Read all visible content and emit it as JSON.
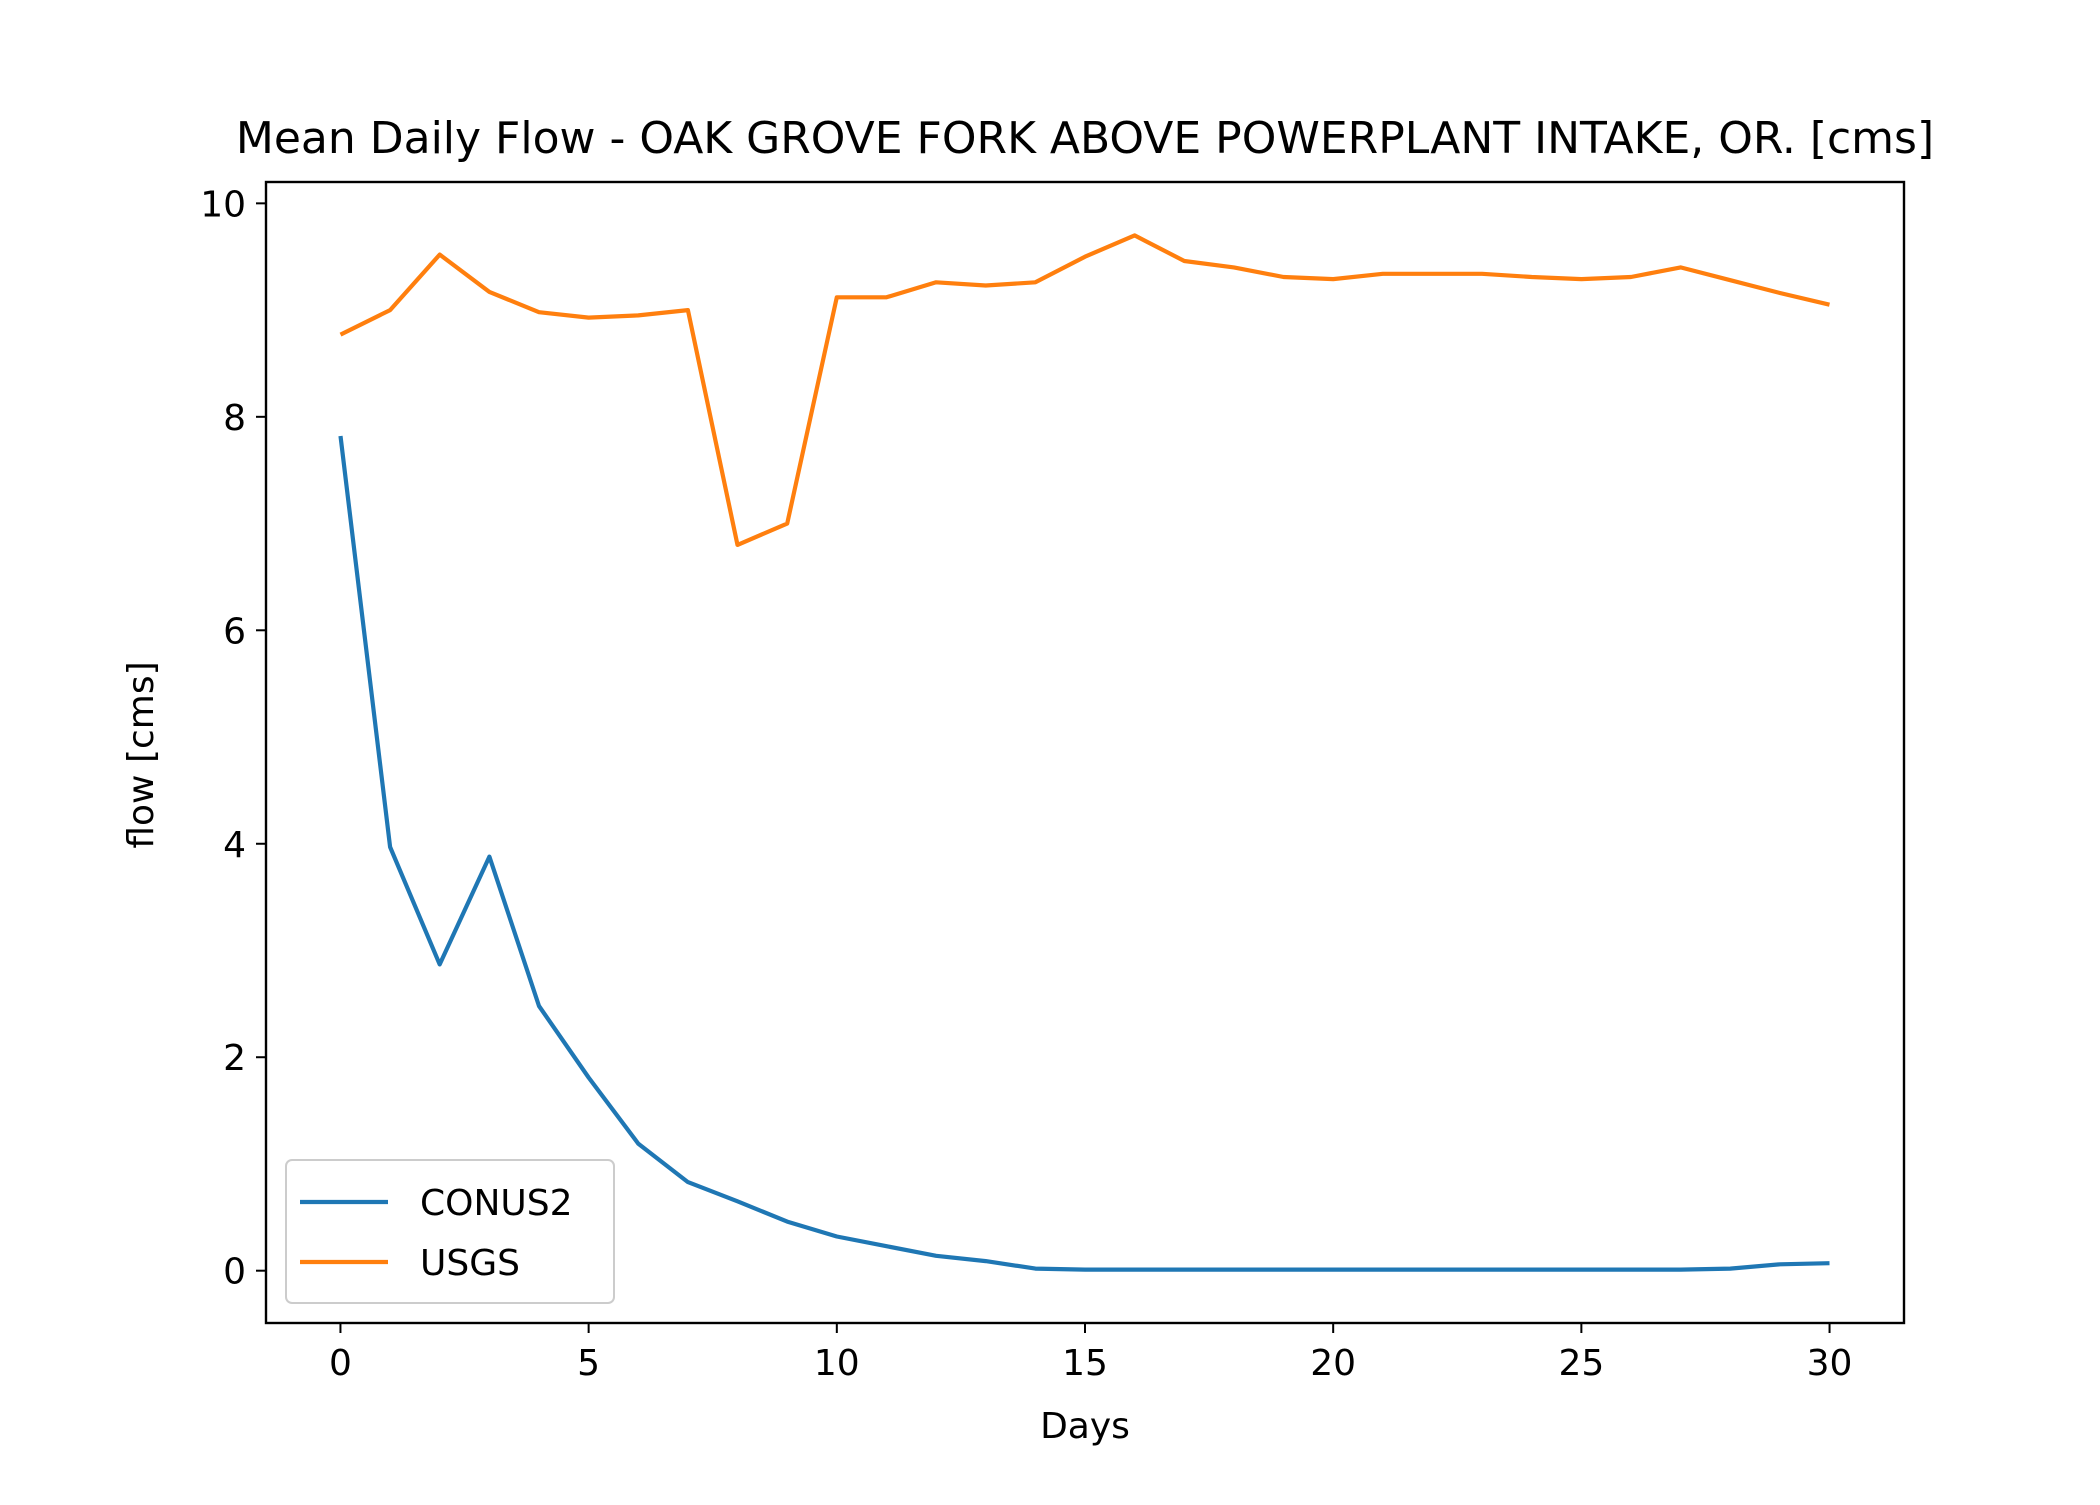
{
  "chart_data": {
    "type": "line",
    "title": "Mean Daily Flow - OAK GROVE FORK ABOVE POWERPLANT INTAKE, OR. [cms]",
    "xlabel": "Days",
    "ylabel": "flow [cms]",
    "xlim": [
      -1.5,
      31.5
    ],
    "ylim": [
      -0.49,
      10.2
    ],
    "xticks": [
      0,
      5,
      10,
      15,
      20,
      25,
      30
    ],
    "yticks": [
      0,
      2,
      4,
      6,
      8,
      10
    ],
    "grid": false,
    "legend_position": "lower-left",
    "x": [
      0,
      1,
      2,
      3,
      4,
      5,
      6,
      7,
      8,
      9,
      10,
      11,
      12,
      13,
      14,
      15,
      16,
      17,
      18,
      19,
      20,
      21,
      22,
      23,
      24,
      25,
      26,
      27,
      28,
      29,
      30
    ],
    "series": [
      {
        "name": "CONUS2",
        "color": "#1f77b4",
        "values": [
          7.82,
          3.97,
          2.87,
          3.88,
          2.48,
          1.81,
          1.19,
          0.83,
          0.65,
          0.46,
          0.32,
          0.23,
          0.14,
          0.09,
          0.02,
          0.01,
          0.01,
          0.01,
          0.01,
          0.01,
          0.01,
          0.01,
          0.01,
          0.01,
          0.01,
          0.01,
          0.01,
          0.01,
          0.02,
          0.06,
          0.07
        ]
      },
      {
        "name": "USGS",
        "color": "#ff7f0e",
        "values": [
          8.77,
          9.0,
          9.52,
          9.17,
          8.98,
          8.93,
          8.95,
          9.0,
          6.8,
          7.0,
          9.12,
          9.12,
          9.26,
          9.23,
          9.26,
          9.5,
          9.7,
          9.46,
          9.4,
          9.31,
          9.29,
          9.34,
          9.34,
          9.34,
          9.31,
          9.29,
          9.31,
          9.4,
          9.28,
          9.16,
          9.05
        ]
      }
    ]
  }
}
